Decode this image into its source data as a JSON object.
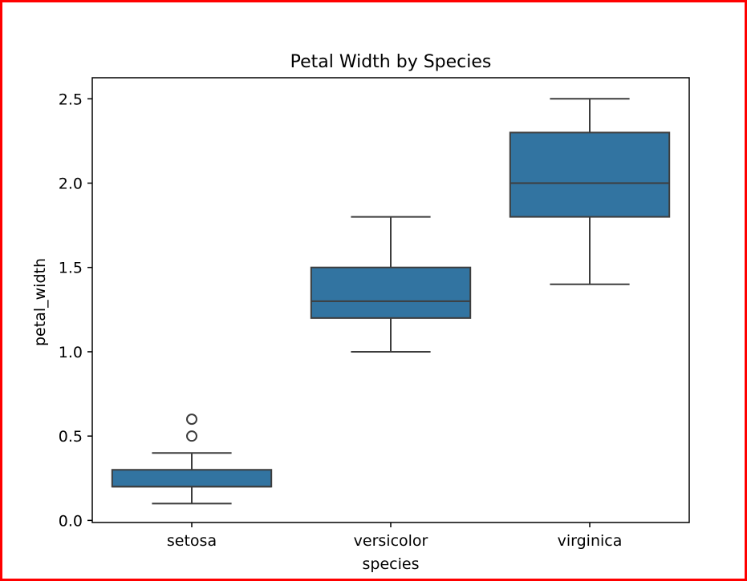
{
  "chart_data": {
    "type": "box",
    "title": "Petal Width by Species",
    "xlabel": "species",
    "ylabel": "petal_width",
    "categories": [
      "setosa",
      "versicolor",
      "virginica"
    ],
    "ylim": [
      -0.0125,
      2.625
    ],
    "yticks": [
      0.0,
      0.5,
      1.0,
      1.5,
      2.0,
      2.5
    ],
    "ytick_labels": [
      "0.0",
      "0.5",
      "1.0",
      "1.5",
      "2.0",
      "2.5"
    ],
    "boxes": [
      {
        "category": "setosa",
        "whisker_low": 0.1,
        "q1": 0.2,
        "median": 0.2,
        "q3": 0.3,
        "whisker_high": 0.4,
        "outliers": [
          0.5,
          0.6
        ]
      },
      {
        "category": "versicolor",
        "whisker_low": 1.0,
        "q1": 1.2,
        "median": 1.3,
        "q3": 1.5,
        "whisker_high": 1.8,
        "outliers": []
      },
      {
        "category": "virginica",
        "whisker_low": 1.4,
        "q1": 1.8,
        "median": 2.0,
        "q3": 2.3,
        "whisker_high": 2.5,
        "outliers": []
      }
    ],
    "grid": false,
    "colors": {
      "box_fill": "#3274a1",
      "line": "#3d3d3d",
      "border": "#ff0000"
    }
  }
}
